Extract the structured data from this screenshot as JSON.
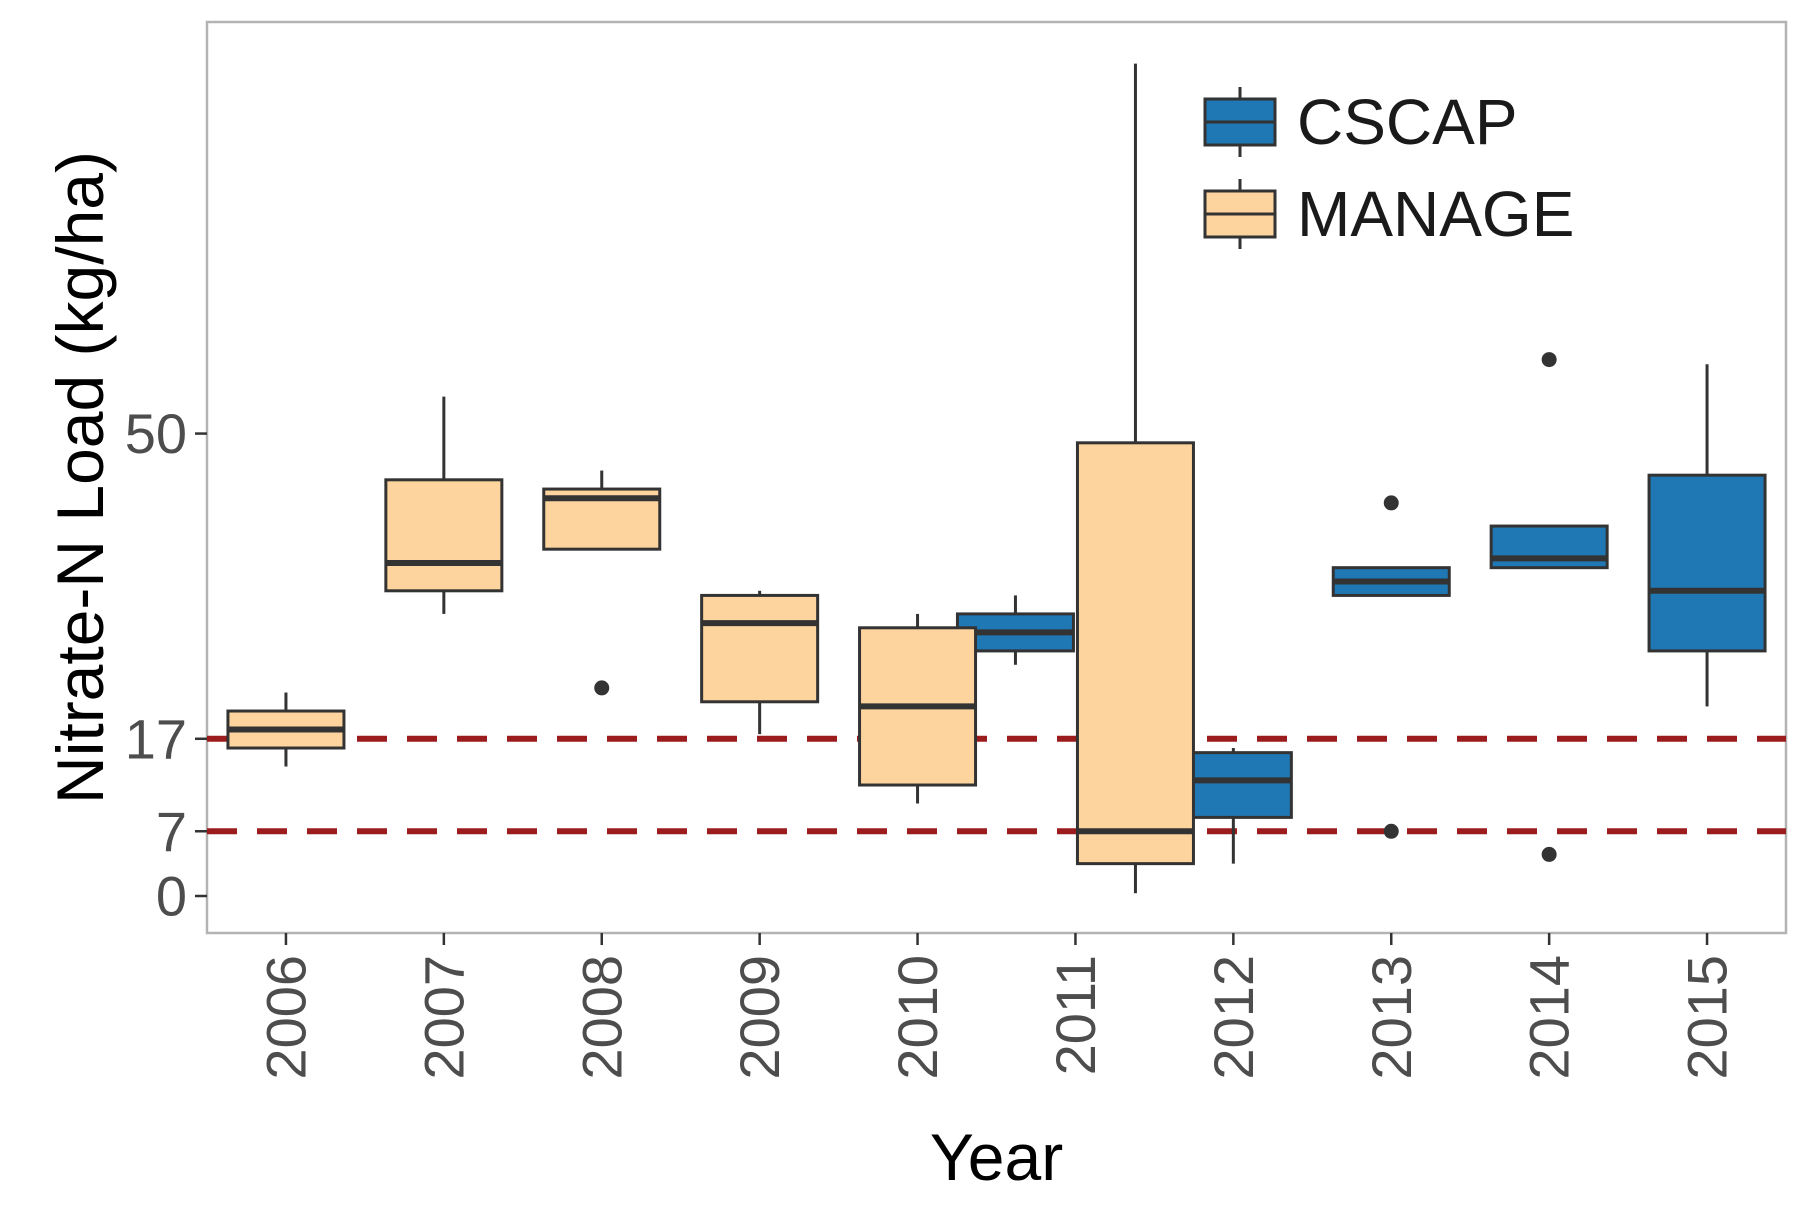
{
  "chart_data": {
    "type": "box",
    "xlabel": "Year",
    "ylabel": "Nitrate-N Load (kg/ha)",
    "categories": [
      "2006",
      "2007",
      "2008",
      "2009",
      "2010",
      "2011",
      "2012",
      "2013",
      "2014",
      "2015"
    ],
    "y_ticks": [
      0,
      7,
      17,
      50
    ],
    "ylim": [
      -4,
      94.5
    ],
    "grid": false,
    "legend_position": "top-right",
    "reference_lines": [
      {
        "y": 17,
        "color": "#9B1C1C",
        "style": "dashed"
      },
      {
        "y": 7,
        "color": "#9B1C1C",
        "style": "dashed"
      }
    ],
    "series": [
      {
        "name": "CSCAP",
        "color": "#1F77B4",
        "boxes": [
          {
            "category": "2011",
            "whisker_low": 25,
            "q1": 26.5,
            "median": 28.5,
            "q3": 30.5,
            "whisker_high": 32.5,
            "outliers": []
          },
          {
            "category": "2012",
            "whisker_low": 3.5,
            "q1": 8.5,
            "median": 12.5,
            "q3": 15.5,
            "whisker_high": 16,
            "outliers": []
          },
          {
            "category": "2013",
            "whisker_low": 32.5,
            "q1": 32.5,
            "median": 34,
            "q3": 35.5,
            "whisker_high": 35.5,
            "outliers": [
              42.5,
              7
            ]
          },
          {
            "category": "2014",
            "whisker_low": 35.5,
            "q1": 35.5,
            "median": 36.5,
            "q3": 40,
            "whisker_high": 40,
            "outliers": [
              58,
              4.5
            ]
          },
          {
            "category": "2015",
            "whisker_low": 20.5,
            "q1": 26.5,
            "median": 33,
            "q3": 45.5,
            "whisker_high": 57.5,
            "outliers": []
          }
        ]
      },
      {
        "name": "MANAGE",
        "color": "#FDD49E",
        "boxes": [
          {
            "category": "2006",
            "whisker_low": 14,
            "q1": 16,
            "median": 18,
            "q3": 20,
            "whisker_high": 22,
            "outliers": []
          },
          {
            "category": "2007",
            "whisker_low": 30.5,
            "q1": 33,
            "median": 36,
            "q3": 45,
            "whisker_high": 54,
            "outliers": []
          },
          {
            "category": "2008",
            "whisker_low": 37.5,
            "q1": 37.5,
            "median": 43,
            "q3": 44,
            "whisker_high": 46,
            "outliers": [
              22.5
            ]
          },
          {
            "category": "2009",
            "whisker_low": 17.5,
            "q1": 21,
            "median": 29.5,
            "q3": 32.5,
            "whisker_high": 33,
            "outliers": []
          },
          {
            "category": "2010",
            "whisker_low": 10,
            "q1": 12,
            "median": 20.5,
            "q3": 29,
            "whisker_high": 30.5,
            "outliers": []
          },
          {
            "category": "2011",
            "whisker_low": 0.3,
            "q1": 3.5,
            "median": 7,
            "q3": 49,
            "whisker_high": 90,
            "outliers": []
          }
        ]
      }
    ]
  }
}
